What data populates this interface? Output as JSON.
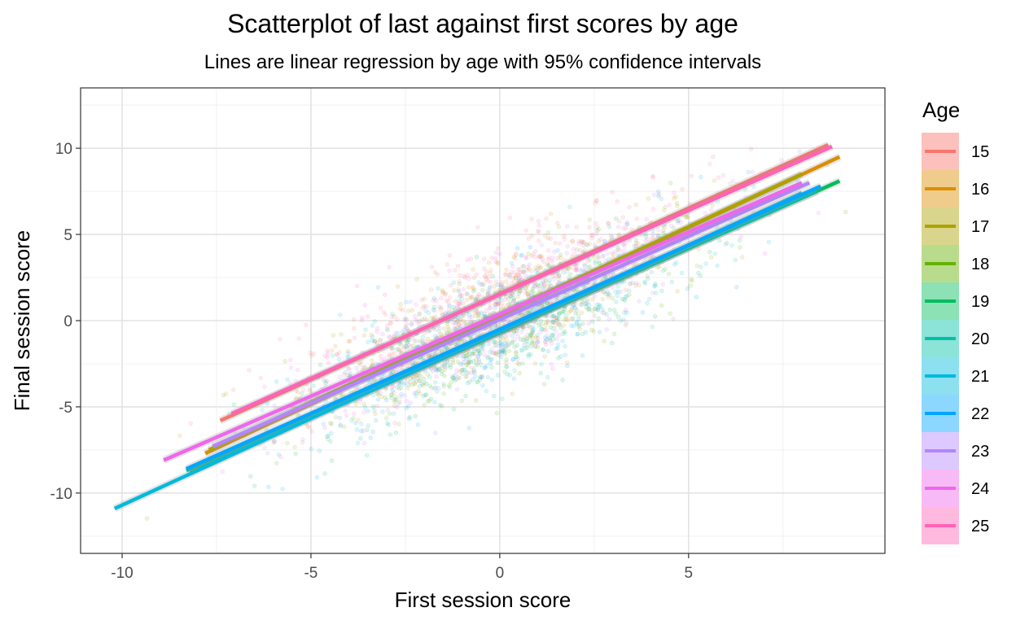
{
  "chart_data": {
    "type": "scatter",
    "title": "Scatterplot of last against first scores by age",
    "subtitle": "Lines are linear regression by age with 95% confidence intervals",
    "xlabel": "First session score",
    "ylabel": "Final session score",
    "xlim": [
      -11.1,
      10.2
    ],
    "ylim": [
      -13.5,
      13.5
    ],
    "x_ticks": [
      -10,
      -5,
      0,
      5
    ],
    "y_ticks": [
      -10,
      -5,
      0,
      5,
      10
    ],
    "x_tick_labels": [
      "-10",
      "-5",
      "0",
      "5"
    ],
    "y_tick_labels": [
      "-10",
      "-5",
      "0",
      "5",
      "10"
    ],
    "grid": true,
    "legend": {
      "title": "Age",
      "position": "right"
    },
    "point_cloud": {
      "center": [
        0,
        0
      ],
      "x_sd": 2.7,
      "correlation": 0.85,
      "alpha": 0.15
    },
    "series": [
      {
        "name": "15",
        "color": "#F8766D",
        "line": {
          "x": [
            -7.4,
            8.7
          ],
          "y": [
            -5.8,
            10.2
          ]
        }
      },
      {
        "name": "16",
        "color": "#DB8E00",
        "line": {
          "x": [
            -7.8,
            9.0
          ],
          "y": [
            -7.7,
            9.5
          ]
        }
      },
      {
        "name": "17",
        "color": "#AEA200",
        "line": {
          "x": [
            -7.7,
            8.0
          ],
          "y": [
            -7.5,
            8.5
          ]
        }
      },
      {
        "name": "18",
        "color": "#64B200",
        "line": {
          "x": [
            -8.2,
            8.5
          ],
          "y": [
            -8.8,
            7.7
          ]
        }
      },
      {
        "name": "19",
        "color": "#00BD5C",
        "line": {
          "x": [
            -8.0,
            9.0
          ],
          "y": [
            -8.5,
            8.1
          ]
        }
      },
      {
        "name": "20",
        "color": "#00C1A7",
        "line": {
          "x": [
            -8.3,
            8.4
          ],
          "y": [
            -8.7,
            7.5
          ]
        }
      },
      {
        "name": "21",
        "color": "#00BADE",
        "line": {
          "x": [
            -10.2,
            8.0
          ],
          "y": [
            -10.9,
            7.4
          ]
        }
      },
      {
        "name": "22",
        "color": "#00A6FF",
        "line": {
          "x": [
            -8.3,
            8.5
          ],
          "y": [
            -8.6,
            7.8
          ]
        }
      },
      {
        "name": "23",
        "color": "#B385FF",
        "line": {
          "x": [
            -7.6,
            8.2
          ],
          "y": [
            -7.3,
            8.0
          ]
        }
      },
      {
        "name": "24",
        "color": "#EF67EB",
        "line": {
          "x": [
            -8.9,
            8.0
          ],
          "y": [
            -8.1,
            8.0
          ]
        }
      },
      {
        "name": "25",
        "color": "#FF63B6",
        "line": {
          "x": [
            -7.1,
            8.8
          ],
          "y": [
            -5.4,
            10.1
          ]
        }
      }
    ]
  }
}
